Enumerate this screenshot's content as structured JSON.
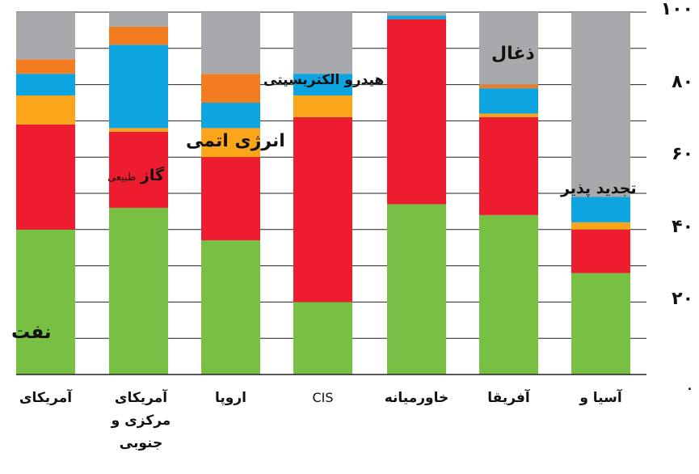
{
  "chart_data": {
    "type": "bar",
    "stacked": true,
    "categories": [
      "آمریکای",
      "آمریکای مرکزی و جنوبی",
      "اروپا",
      "CIS",
      "خاورمیانه",
      "آفریقا",
      "آسیا و"
    ],
    "series": [
      {
        "name": "نفت",
        "color": "#77c043",
        "values": [
          40,
          46,
          37,
          20,
          47,
          44,
          28
        ]
      },
      {
        "name": "گاز طبیعی",
        "color": "#ed1c2e",
        "values": [
          29,
          21,
          23,
          51,
          51,
          27,
          12
        ]
      },
      {
        "name": "انرژی اتمی",
        "color": "#faa51a",
        "values": [
          8,
          1,
          8,
          6,
          0,
          1,
          2
        ]
      },
      {
        "name": "هیدرو الکتریسیتی",
        "color": "#0ea4e0",
        "values": [
          6,
          23,
          7,
          6,
          1,
          7,
          7
        ]
      },
      {
        "name": "تجدید پذیر",
        "color": "#f47c20",
        "values": [
          4,
          5,
          8,
          0,
          0,
          1,
          0
        ]
      },
      {
        "name": "ذغال",
        "color": "#a7a9ac",
        "values": [
          13,
          4,
          17,
          17,
          1,
          20,
          51
        ]
      }
    ],
    "y_ticks": [
      "۰",
      "۲۰",
      "۴۰",
      "۶۰",
      "۸۰",
      "۱۰۰"
    ],
    "ylim": [
      0,
      100
    ],
    "grid": true,
    "annotations": {
      "oil": "نفت",
      "gas_main": "گاز",
      "gas_small": "طبیعی",
      "nuclear": "انرژی اتمی",
      "hydro": "هیدرو الکتریسیتی",
      "renewable": "تجدید پذیر",
      "coal": "ذغال"
    }
  }
}
